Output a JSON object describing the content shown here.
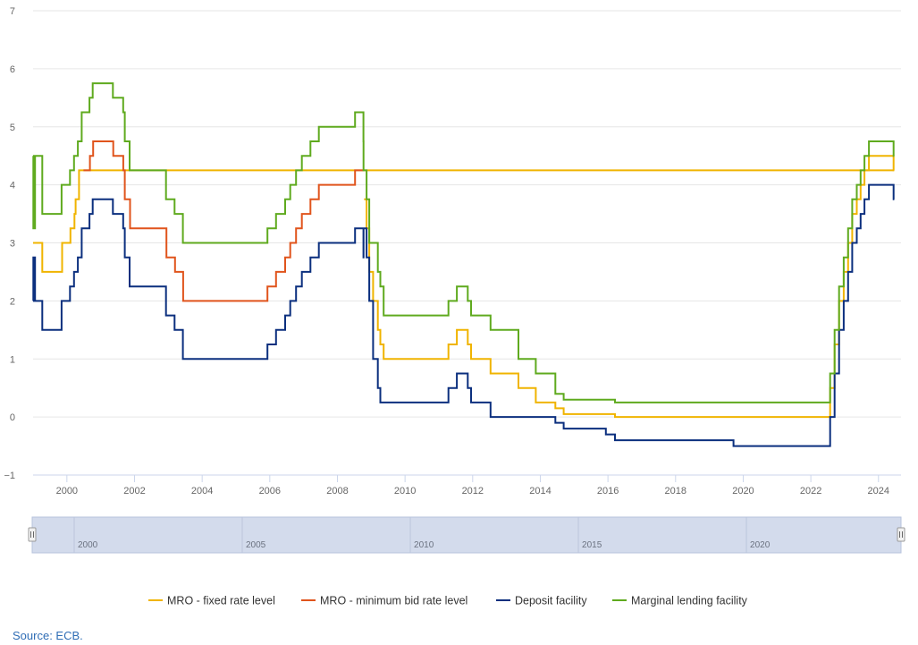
{
  "chart_data": {
    "type": "line",
    "step": true,
    "title": "",
    "xlabel": "",
    "ylabel": "",
    "xlim": [
      "1999-01-01",
      "2024-09-01"
    ],
    "ylim": [
      -1,
      7
    ],
    "y_ticks": [
      -1,
      0,
      1,
      2,
      3,
      4,
      5,
      6,
      7
    ],
    "x_tick_labels": [
      "2000",
      "2002",
      "2004",
      "2006",
      "2008",
      "2010",
      "2012",
      "2014",
      "2016",
      "2018",
      "2020",
      "2022",
      "2024"
    ],
    "grid": "horizontal",
    "legend_position": "bottom-center",
    "navigator": {
      "tick_labels": [
        "2000",
        "2005",
        "2010",
        "2015",
        "2020"
      ]
    },
    "series": [
      {
        "name": "MRO - fixed rate level",
        "color": "#f0b400",
        "points": [
          [
            "1999-01-01",
            3.0
          ],
          [
            "1999-04-09",
            2.5
          ],
          [
            "1999-11-10",
            3.0
          ],
          [
            "2000-02-09",
            3.25
          ],
          [
            "2000-03-22",
            3.5
          ],
          [
            "2000-04-04",
            3.75
          ],
          [
            "2000-05-10",
            4.25
          ],
          [
            "2000-06-15",
            4.25
          ],
          [
            "2024-06-12",
            4.25
          ]
        ]
      },
      {
        "name": "MRO - minimum bid rate level",
        "color": "#e0541c",
        "points": [
          [
            "2000-06-28",
            4.25
          ],
          [
            "2000-09-06",
            4.5
          ],
          [
            "2000-10-11",
            4.75
          ],
          [
            "2001-05-15",
            4.5
          ],
          [
            "2001-09-01",
            4.25
          ],
          [
            "2001-09-18",
            3.75
          ],
          [
            "2001-11-14",
            3.25
          ],
          [
            "2002-12-11",
            2.75
          ],
          [
            "2003-03-12",
            2.5
          ],
          [
            "2003-06-09",
            2.0
          ],
          [
            "2005-12-06",
            2.25
          ],
          [
            "2006-03-08",
            2.5
          ],
          [
            "2006-06-15",
            2.75
          ],
          [
            "2006-08-09",
            3.0
          ],
          [
            "2006-10-11",
            3.25
          ],
          [
            "2006-12-13",
            3.5
          ],
          [
            "2007-03-14",
            3.75
          ],
          [
            "2007-06-13",
            4.0
          ],
          [
            "2008-07-09",
            4.25
          ],
          [
            "2008-10-08",
            4.25
          ]
        ]
      },
      {
        "name": "MRO - fixed rate level",
        "color": "#f0b400",
        "points": [
          [
            "2008-10-15",
            3.75
          ],
          [
            "2008-11-12",
            3.25
          ],
          [
            "2008-12-10",
            2.5
          ],
          [
            "2009-01-21",
            2.0
          ],
          [
            "2009-03-11",
            1.5
          ],
          [
            "2009-04-08",
            1.25
          ],
          [
            "2009-05-13",
            1.0
          ],
          [
            "2011-04-13",
            1.25
          ],
          [
            "2011-07-13",
            1.5
          ],
          [
            "2011-11-09",
            1.25
          ],
          [
            "2011-12-14",
            1.0
          ],
          [
            "2012-07-11",
            0.75
          ],
          [
            "2013-05-08",
            0.5
          ],
          [
            "2013-11-13",
            0.25
          ],
          [
            "2014-06-11",
            0.15
          ],
          [
            "2014-09-10",
            0.05
          ],
          [
            "2016-03-16",
            0.0
          ],
          [
            "2022-07-27",
            0.5
          ],
          [
            "2022-09-14",
            1.25
          ],
          [
            "2022-11-02",
            2.0
          ],
          [
            "2022-12-21",
            2.5
          ],
          [
            "2023-02-08",
            3.0
          ],
          [
            "2023-03-22",
            3.5
          ],
          [
            "2023-05-10",
            3.75
          ],
          [
            "2023-06-21",
            4.0
          ],
          [
            "2023-08-02",
            4.25
          ],
          [
            "2023-09-20",
            4.5
          ],
          [
            "2024-06-12",
            4.25
          ],
          [
            "2024-06-20",
            4.25
          ]
        ]
      },
      {
        "name": "Deposit facility",
        "color": "#0b2f7e",
        "points": [
          [
            "1999-01-01",
            2.0
          ],
          [
            "1999-01-04",
            2.75
          ],
          [
            "1999-01-22",
            2.0
          ],
          [
            "1999-04-09",
            1.5
          ],
          [
            "1999-11-05",
            2.0
          ],
          [
            "2000-02-04",
            2.25
          ],
          [
            "2000-03-17",
            2.5
          ],
          [
            "2000-04-28",
            2.75
          ],
          [
            "2000-06-09",
            3.25
          ],
          [
            "2000-09-01",
            3.5
          ],
          [
            "2000-10-06",
            3.75
          ],
          [
            "2001-05-11",
            3.5
          ],
          [
            "2001-08-31",
            3.25
          ],
          [
            "2001-09-18",
            2.75
          ],
          [
            "2001-11-09",
            2.25
          ],
          [
            "2002-12-06",
            1.75
          ],
          [
            "2003-03-07",
            1.5
          ],
          [
            "2003-06-06",
            1.0
          ],
          [
            "2005-12-06",
            1.25
          ],
          [
            "2006-03-08",
            1.5
          ],
          [
            "2006-06-15",
            1.75
          ],
          [
            "2006-08-09",
            2.0
          ],
          [
            "2006-10-11",
            2.25
          ],
          [
            "2006-12-13",
            2.5
          ],
          [
            "2007-03-14",
            2.75
          ],
          [
            "2007-06-13",
            3.0
          ],
          [
            "2008-07-09",
            3.25
          ],
          [
            "2008-10-08",
            2.75
          ],
          [
            "2008-10-09",
            3.25
          ],
          [
            "2008-11-12",
            2.75
          ],
          [
            "2008-12-10",
            2.0
          ],
          [
            "2009-01-21",
            1.0
          ],
          [
            "2009-03-11",
            0.5
          ],
          [
            "2009-04-08",
            0.25
          ],
          [
            "2011-04-13",
            0.5
          ],
          [
            "2011-07-13",
            0.75
          ],
          [
            "2011-11-09",
            0.5
          ],
          [
            "2011-12-14",
            0.25
          ],
          [
            "2012-07-11",
            0.0
          ],
          [
            "2014-06-11",
            -0.1
          ],
          [
            "2014-09-10",
            -0.2
          ],
          [
            "2015-12-09",
            -0.3
          ],
          [
            "2016-03-16",
            -0.4
          ],
          [
            "2019-09-18",
            -0.5
          ],
          [
            "2022-07-27",
            0.0
          ],
          [
            "2022-09-14",
            0.75
          ],
          [
            "2022-11-02",
            1.5
          ],
          [
            "2022-12-21",
            2.0
          ],
          [
            "2023-02-08",
            2.5
          ],
          [
            "2023-03-22",
            3.0
          ],
          [
            "2023-05-10",
            3.25
          ],
          [
            "2023-06-21",
            3.5
          ],
          [
            "2023-08-02",
            3.75
          ],
          [
            "2023-09-20",
            4.0
          ],
          [
            "2024-06-12",
            3.75
          ],
          [
            "2024-06-20",
            3.75
          ]
        ]
      },
      {
        "name": "Marginal lending facility",
        "color": "#5faa1e",
        "points": [
          [
            "1999-01-01",
            4.5
          ],
          [
            "1999-01-04",
            3.25
          ],
          [
            "1999-01-22",
            4.5
          ],
          [
            "1999-04-09",
            3.5
          ],
          [
            "1999-11-05",
            4.0
          ],
          [
            "2000-02-04",
            4.25
          ],
          [
            "2000-03-17",
            4.5
          ],
          [
            "2000-04-28",
            4.75
          ],
          [
            "2000-06-09",
            5.25
          ],
          [
            "2000-09-01",
            5.5
          ],
          [
            "2000-10-06",
            5.75
          ],
          [
            "2001-05-11",
            5.5
          ],
          [
            "2001-08-31",
            5.25
          ],
          [
            "2001-09-18",
            4.75
          ],
          [
            "2001-11-09",
            4.25
          ],
          [
            "2002-12-06",
            3.75
          ],
          [
            "2003-03-07",
            3.5
          ],
          [
            "2003-06-06",
            3.0
          ],
          [
            "2005-12-06",
            3.25
          ],
          [
            "2006-03-08",
            3.5
          ],
          [
            "2006-06-15",
            3.75
          ],
          [
            "2006-08-09",
            4.0
          ],
          [
            "2006-10-11",
            4.25
          ],
          [
            "2006-12-13",
            4.5
          ],
          [
            "2007-03-14",
            4.75
          ],
          [
            "2007-06-13",
            5.0
          ],
          [
            "2008-07-09",
            5.25
          ],
          [
            "2008-10-08",
            4.75
          ],
          [
            "2008-10-09",
            4.25
          ],
          [
            "2008-11-12",
            3.75
          ],
          [
            "2008-12-10",
            3.0
          ],
          [
            "2009-01-21",
            3.0
          ],
          [
            "2009-03-11",
            2.5
          ],
          [
            "2009-04-08",
            2.25
          ],
          [
            "2009-05-13",
            1.75
          ],
          [
            "2011-04-13",
            2.0
          ],
          [
            "2011-07-13",
            2.25
          ],
          [
            "2011-11-09",
            2.0
          ],
          [
            "2011-12-14",
            1.75
          ],
          [
            "2012-07-11",
            1.5
          ],
          [
            "2013-05-08",
            1.0
          ],
          [
            "2013-11-13",
            0.75
          ],
          [
            "2014-06-11",
            0.4
          ],
          [
            "2014-09-10",
            0.3
          ],
          [
            "2016-03-16",
            0.25
          ],
          [
            "2022-07-27",
            0.75
          ],
          [
            "2022-09-14",
            1.5
          ],
          [
            "2022-11-02",
            2.25
          ],
          [
            "2022-12-21",
            2.75
          ],
          [
            "2023-02-08",
            3.25
          ],
          [
            "2023-03-22",
            3.75
          ],
          [
            "2023-05-10",
            4.0
          ],
          [
            "2023-06-21",
            4.25
          ],
          [
            "2023-08-02",
            4.5
          ],
          [
            "2023-09-20",
            4.75
          ],
          [
            "2024-06-12",
            4.5
          ],
          [
            "2024-06-20",
            4.5
          ]
        ]
      }
    ]
  },
  "legend": [
    {
      "label": "MRO - fixed rate level",
      "color": "#f0b400"
    },
    {
      "label": "MRO - minimum bid rate level",
      "color": "#e0541c"
    },
    {
      "label": "Deposit facility",
      "color": "#0b2f7e"
    },
    {
      "label": "Marginal lending facility",
      "color": "#5faa1e"
    }
  ],
  "source": "Source: ECB."
}
